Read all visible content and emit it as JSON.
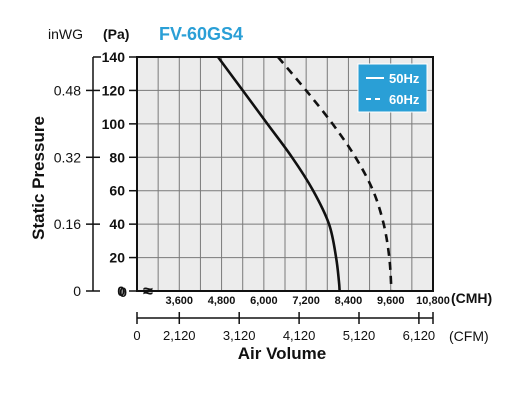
{
  "chart_data": {
    "type": "line",
    "title": "FV-60GS4",
    "ylabel": "Static Pressure",
    "xlabel": "Air Volume",
    "y_units": {
      "primary": "(Pa)",
      "secondary": "inWG"
    },
    "x_units": {
      "primary": "(CMH)",
      "secondary": "(CFM)"
    },
    "ylim": [
      0,
      140
    ],
    "xlim": [
      2400,
      10800
    ],
    "y_ticks": [
      "0",
      "20",
      "40",
      "60",
      "80",
      "100",
      "120",
      "140"
    ],
    "y_ticks_secondary": [
      {
        "label": "0",
        "pa": 0
      },
      {
        "label": "0.16",
        "pa": 40
      },
      {
        "label": "0.32",
        "pa": 80
      },
      {
        "label": "0.48",
        "pa": 120
      }
    ],
    "x_ticks": [
      "3,600",
      "4,800",
      "6,000",
      "7,200",
      "8,400",
      "9,600",
      "10,800"
    ],
    "x_ticks_secondary": [
      {
        "label": "0",
        "cmh": 2400
      },
      {
        "label": "2,120",
        "cmh": 3600
      },
      {
        "label": "3,120",
        "cmh": 5300
      },
      {
        "label": "4,120",
        "cmh": 7000
      },
      {
        "label": "5,120",
        "cmh": 8700
      },
      {
        "label": "6,120",
        "cmh": 10400
      }
    ],
    "axis_break_mark": "≈",
    "grid": true,
    "legend_position": "top-right",
    "legend_bg": "#2a9fd6",
    "title_color": "#2a9fd6",
    "series": [
      {
        "name": "50Hz",
        "style": "solid",
        "x": [
          4700,
          5400,
          6100,
          6800,
          7400,
          7850,
          8050,
          8130,
          8150
        ],
        "y": [
          140,
          120,
          100,
          80,
          60,
          40,
          20,
          6,
          0
        ]
      },
      {
        "name": "60Hz",
        "style": "dashed",
        "x": [
          6400,
          7200,
          7950,
          8600,
          9100,
          9400,
          9560,
          9620
        ],
        "y": [
          140,
          120,
          100,
          80,
          60,
          40,
          20,
          0
        ]
      }
    ]
  }
}
